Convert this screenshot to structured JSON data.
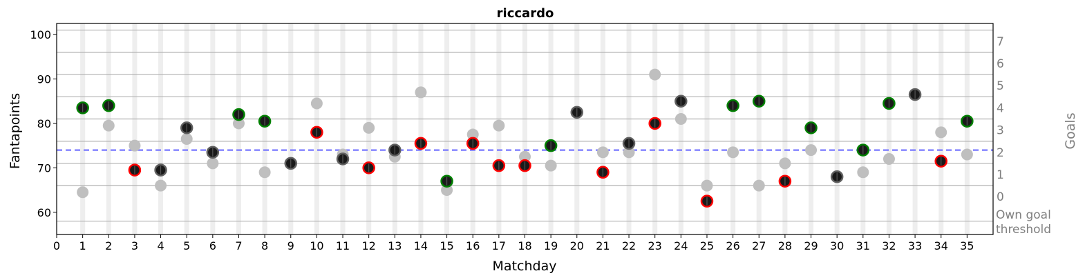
{
  "chart_data": {
    "type": "scatter",
    "title": "riccardo",
    "xlabel": "Matchday",
    "ylabel": "Fantapoints",
    "y2label": "Goals",
    "xlim": [
      0,
      36
    ],
    "ylim": [
      55,
      102.5
    ],
    "xticks": [
      0,
      1,
      2,
      3,
      4,
      5,
      6,
      7,
      8,
      9,
      10,
      11,
      12,
      13,
      14,
      15,
      16,
      17,
      18,
      19,
      20,
      21,
      22,
      23,
      24,
      25,
      26,
      27,
      28,
      29,
      30,
      31,
      32,
      33,
      34,
      35
    ],
    "yticks": [
      60,
      70,
      80,
      90,
      100
    ],
    "goal_thresholds": [
      66,
      71,
      76,
      81,
      86,
      91,
      96,
      101
    ],
    "own_goal_threshold": 58,
    "own_goal_label": "Own goal threshold",
    "goal_tick_labels": [
      "0",
      "1",
      "2",
      "3",
      "4",
      "5",
      "6",
      "7"
    ],
    "average_line": 74,
    "matchdays": [
      1,
      2,
      3,
      4,
      5,
      6,
      7,
      8,
      9,
      10,
      11,
      12,
      13,
      14,
      15,
      16,
      17,
      18,
      19,
      20,
      21,
      22,
      23,
      24,
      25,
      26,
      27,
      28,
      29,
      30,
      31,
      32,
      33,
      34,
      35
    ],
    "points": [
      83.5,
      84,
      69.5,
      69.5,
      79,
      73.5,
      82,
      80.5,
      71,
      78,
      72,
      70,
      74,
      75.5,
      67,
      75.5,
      70.5,
      70.5,
      75,
      82.5,
      69,
      75.5,
      80,
      85,
      62.5,
      84,
      85,
      67,
      79,
      68,
      74,
      84.5,
      86.5,
      71.5,
      80.5
    ],
    "opponent_points": [
      64.5,
      79.5,
      75,
      66,
      76.5,
      71,
      80,
      69,
      71,
      84.5,
      73,
      79,
      72.5,
      87,
      65,
      77.5,
      79.5,
      72.5,
      70.5,
      82.5,
      73.5,
      73.5,
      91,
      81,
      66,
      73.5,
      66,
      71,
      74,
      68,
      69,
      72,
      86.5,
      78,
      73
    ],
    "edge_colors": [
      "#008000",
      "#008000",
      "#ff0000",
      "#606060",
      "#606060",
      "#606060",
      "#008000",
      "#008000",
      "#606060",
      "#ff0000",
      "#606060",
      "#ff0000",
      "#606060",
      "#ff0000",
      "#008000",
      "#ff0000",
      "#ff0000",
      "#ff0000",
      "#008000",
      "#606060",
      "#ff0000",
      "#606060",
      "#ff0000",
      "#606060",
      "#ff0000",
      "#008000",
      "#008000",
      "#ff0000",
      "#008000",
      "#606060",
      "#008000",
      "#008000",
      "#606060",
      "#ff0000",
      "#008000"
    ],
    "colors": {
      "marker_fill": "#1a1a1a",
      "opponent": "#bfbfbf",
      "average_line": "#7777ff",
      "band": "#eeeeee",
      "grid": "#b0b0b0",
      "secondary_axis_text": "#808080"
    },
    "grid": true
  }
}
